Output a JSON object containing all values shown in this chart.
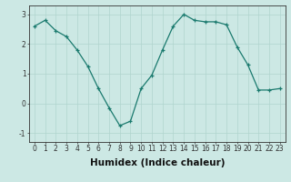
{
  "x": [
    0,
    1,
    2,
    3,
    4,
    5,
    6,
    7,
    8,
    9,
    10,
    11,
    12,
    13,
    14,
    15,
    16,
    17,
    18,
    19,
    20,
    21,
    22,
    23
  ],
  "y": [
    2.6,
    2.8,
    2.45,
    2.25,
    1.8,
    1.25,
    0.5,
    -0.15,
    -0.75,
    -0.6,
    0.5,
    0.95,
    1.8,
    2.6,
    3.0,
    2.8,
    2.75,
    2.75,
    2.65,
    1.9,
    1.3,
    0.45,
    0.45,
    0.5
  ],
  "xlabel": "Humidex (Indice chaleur)",
  "ylabel": "",
  "ylim": [
    -1.3,
    3.3
  ],
  "xlim": [
    -0.5,
    23.5
  ],
  "yticks": [
    -1,
    0,
    1,
    2,
    3
  ],
  "xticks": [
    0,
    1,
    2,
    3,
    4,
    5,
    6,
    7,
    8,
    9,
    10,
    11,
    12,
    13,
    14,
    15,
    16,
    17,
    18,
    19,
    20,
    21,
    22,
    23
  ],
  "line_color": "#1a7a6e",
  "marker_color": "#1a7a6e",
  "bg_color": "#cce8e4",
  "grid_color": "#b0d4ce",
  "axes_color": "#333333",
  "tick_label_fontsize": 5.5,
  "xlabel_fontsize": 7.5
}
